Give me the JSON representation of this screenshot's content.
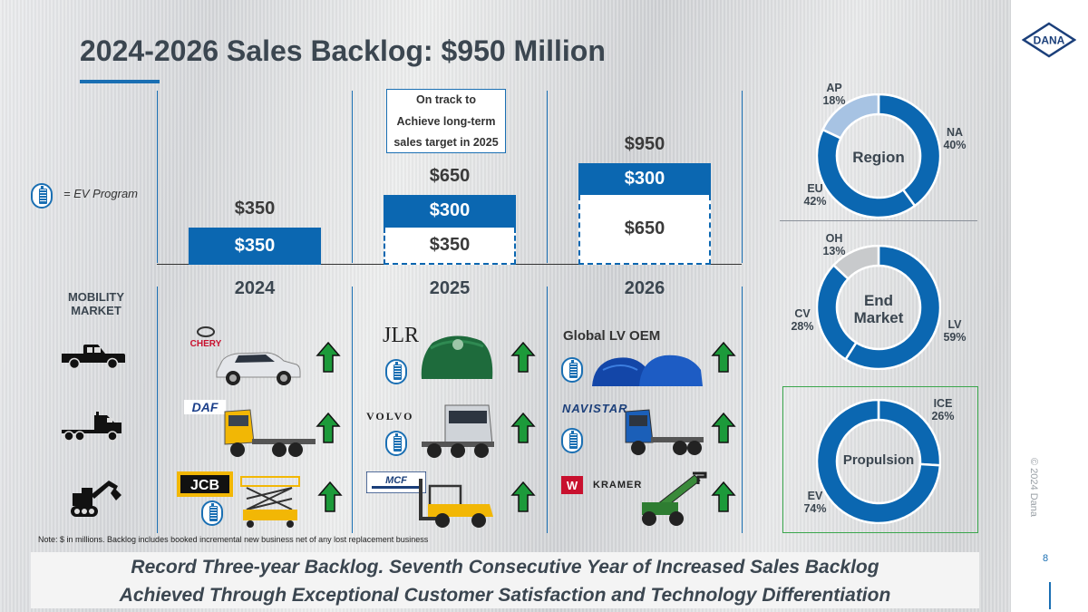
{
  "title": "2024-2026 Sales Backlog: $950 Million",
  "legend": {
    "ev_program_text": "= EV Program",
    "ev_icon": "battery-icon"
  },
  "callout": {
    "lines": [
      "On track to",
      "Achieve long-term",
      "sales target in 2025"
    ]
  },
  "mobility_market": [
    "MOBILITY",
    "MARKET"
  ],
  "chart_data": [
    {
      "type": "bar",
      "stacked": true,
      "categories": [
        "2024",
        "2025",
        "2026"
      ],
      "series": [
        {
          "values": [
            350,
            350,
            650
          ],
          "style": "dashed-outline except 2024 solid"
        },
        {
          "values": [
            0,
            300,
            300
          ],
          "style": "solid blue"
        }
      ],
      "bar_labels": {
        "2024": {
          "base": "$350",
          "total": "$350"
        },
        "2025": {
          "base": "$350",
          "top": "$300",
          "total": "$650"
        },
        "2026": {
          "base": "$650",
          "top": "$300",
          "total": "$950"
        }
      },
      "colors": {
        "solid": "#0b67b1",
        "dashed": "#0b67b1"
      }
    },
    {
      "type": "pie",
      "title": "Region",
      "labels": [
        "NA",
        "EU",
        "AP"
      ],
      "label_text": [
        "NA\n40%",
        "EU\n42%",
        "AP\n18%"
      ],
      "values": [
        40,
        42,
        18
      ],
      "colors": [
        "#0b67b1",
        "#0b67b1",
        "#a7c3e3"
      ]
    },
    {
      "type": "pie",
      "title": "End Market",
      "labels": [
        "LV",
        "CV",
        "OH"
      ],
      "label_text": [
        "LV\n59%",
        "CV\n28%",
        "OH\n13%"
      ],
      "values": [
        59,
        28,
        13
      ],
      "colors": [
        "#0b67b1",
        "#0b67b1",
        "#c8cacc"
      ]
    },
    {
      "type": "pie",
      "title": "Propulsion",
      "labels": [
        "ICE",
        "EV"
      ],
      "label_text": [
        "ICE\n26%",
        "EV\n74%"
      ],
      "values": [
        26,
        74
      ],
      "colors": [
        "#0b67b1",
        "#0b67b1"
      ]
    }
  ],
  "rows": {
    "icons": [
      "pickup-truck-icon",
      "semi-truck-icon",
      "excavator-icon"
    ],
    "2024": [
      {
        "logo": "CHERY",
        "image": "chery-suv-image",
        "ev": false
      },
      {
        "logo": "DAF",
        "image": "daf-truck-image",
        "ev": false
      },
      {
        "logo": "JCB",
        "image": "scissor-lift-image",
        "ev": true
      }
    ],
    "2025": [
      {
        "logo": "JLR",
        "image": "covered-vehicle-image",
        "ev": true
      },
      {
        "logo": "VOLVO",
        "image": "volvo-truck-image",
        "ev": true
      },
      {
        "logo": "MCF",
        "image": "forklift-image",
        "ev": false
      }
    ],
    "2026": [
      {
        "logo": "Global LV OEM",
        "image": "covered-vehicles-image",
        "ev": true
      },
      {
        "logo": "NAVISTAR",
        "image": "navistar-truck-image",
        "ev": true
      },
      {
        "logo": "KRAMER",
        "image": "telehandler-image",
        "ev": false
      }
    ]
  },
  "note": "Note: $ in millions. Backlog includes booked incremental new business net of any lost replacement business",
  "banner": [
    "Record Three-year Backlog.  Seventh Consecutive Year of Increased Sales Backlog",
    "Achieved Through Exceptional Customer Satisfaction and Technology Differentiation"
  ],
  "brand": {
    "logo_text": "DANA",
    "copyright": "© 2024 Dana",
    "page_number": "8"
  },
  "colors": {
    "accent": "#0b67b1",
    "up_arrow": "#1c9a3a",
    "propulsion_box": "#3aa64c"
  }
}
